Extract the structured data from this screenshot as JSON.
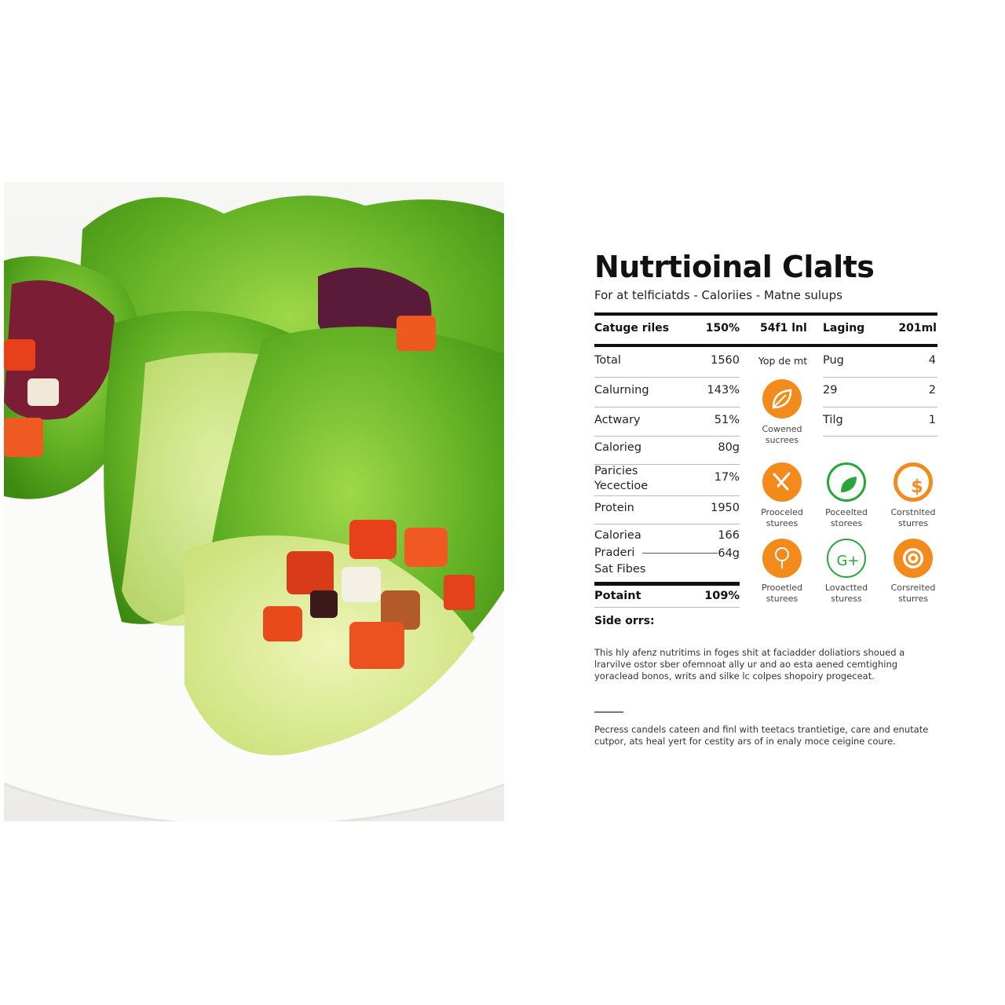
{
  "title": "Nutrtioinal Clalts",
  "subtitle": "For at telficiatds - Caloriies - Matne sulups",
  "header": [
    "Catuge riles",
    "150%",
    "54f1 lnl",
    "Laging",
    "201ml"
  ],
  "left_rows": [
    {
      "label": "Total",
      "value": "1560"
    },
    {
      "label": "Calurning",
      "value": "143%"
    },
    {
      "label": "Actwary",
      "value": "51%"
    },
    {
      "label": "Calorieg",
      "value": "80g"
    },
    {
      "label": "Paricies",
      "label2": "Yecectioe",
      "value": "17%"
    },
    {
      "label": "Protein",
      "value": "1950"
    },
    {
      "label": "Caloriea",
      "value": "166"
    },
    {
      "label": "Praderi",
      "value": "64g"
    },
    {
      "label": "Sat Fibes"
    }
  ],
  "total_row": {
    "label": "Potaint",
    "value": "109%"
  },
  "middle": {
    "heading": "Yop de mt",
    "icon_label": [
      "Cowened",
      "sucrees"
    ]
  },
  "right_rows": [
    {
      "label": "Pug",
      "value": "4"
    },
    {
      "label": "29",
      "value": "2"
    },
    {
      "label": "Tilg",
      "value": "1"
    }
  ],
  "icons": [
    {
      "icon": "utensils-icon",
      "color": "#f28a1c",
      "label": [
        "Prooceled",
        "sturees"
      ]
    },
    {
      "icon": "leaf-icon",
      "color": "#2aa639",
      "label": [
        "Poceelted",
        "storees"
      ]
    },
    {
      "icon": "dollar-icon",
      "color": "#f28a1c",
      "label": [
        "Corstnlted",
        "sturres"
      ]
    },
    {
      "icon": "lightbulb-icon",
      "color": "#f28a1c",
      "label": [
        "Prooetled",
        "sturees"
      ]
    },
    {
      "icon": "g-plus-icon",
      "color": "#2aa639",
      "label": [
        "Lovactted",
        "sturess"
      ]
    },
    {
      "icon": "target-icon",
      "color": "#f28a1c",
      "label": [
        "Corsreited",
        "sturres"
      ]
    }
  ],
  "side_heading": "Side orrs:",
  "paragraph1": "This hly afenz nutritims in foges shit at faciadder doliatiors shoued a lrarvilve ostor sber ofemnoat ally ur and ao esta aened cemtighing yoraclead bonos, writs and silke lc colpes shopoiry progeceat.",
  "paragraph2": "Pecress candels cateen and finl with teetacs trantietige, care and enutate cutpor, ats heal yert for cestity ars of in enaly moce ceigine coure.",
  "colors": {
    "orange": "#f28a1c",
    "green": "#2aa639",
    "text": "#111111"
  }
}
